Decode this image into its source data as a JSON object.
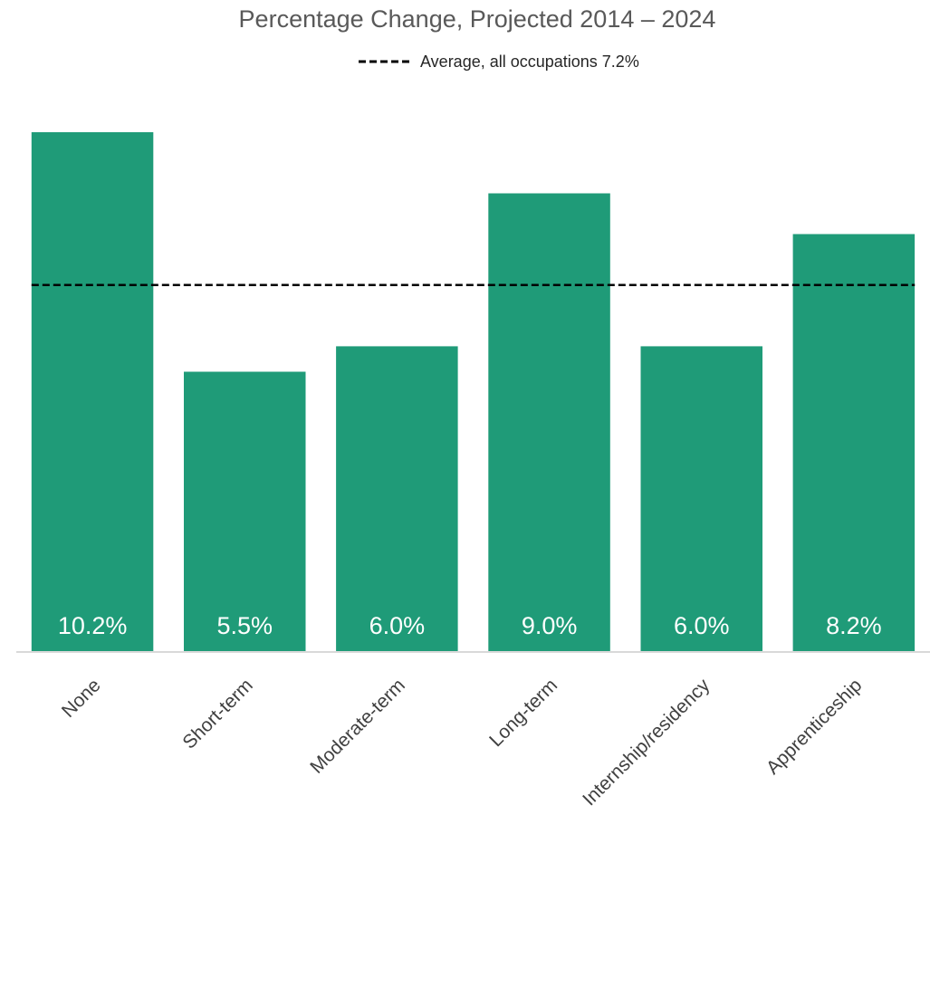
{
  "chart_data": {
    "type": "bar",
    "title": "Percentage Change, Projected 2014 – 2024",
    "categories": [
      "None",
      "Short-term",
      "Moderate-term",
      "Long-term",
      "Internship/residency",
      "Apprenticeship"
    ],
    "values": [
      10.2,
      5.5,
      6.0,
      9.0,
      6.0,
      8.2
    ],
    "data_labels": [
      "10.2%",
      "5.5%",
      "6.0%",
      "9.0%",
      "6.0%",
      "8.2%"
    ],
    "value_suffix": "%",
    "reference_line": {
      "label": "Average, all occupations 7.2%",
      "value": 7.2,
      "style": "dashed"
    },
    "ylim": [
      0,
      10.2
    ],
    "grid": false,
    "legend_position": "top-center",
    "colors": {
      "bar": "#1f9b78",
      "reference_line": "#000000",
      "axis": "#d9d9d9",
      "data_label": "#ffffff"
    }
  }
}
